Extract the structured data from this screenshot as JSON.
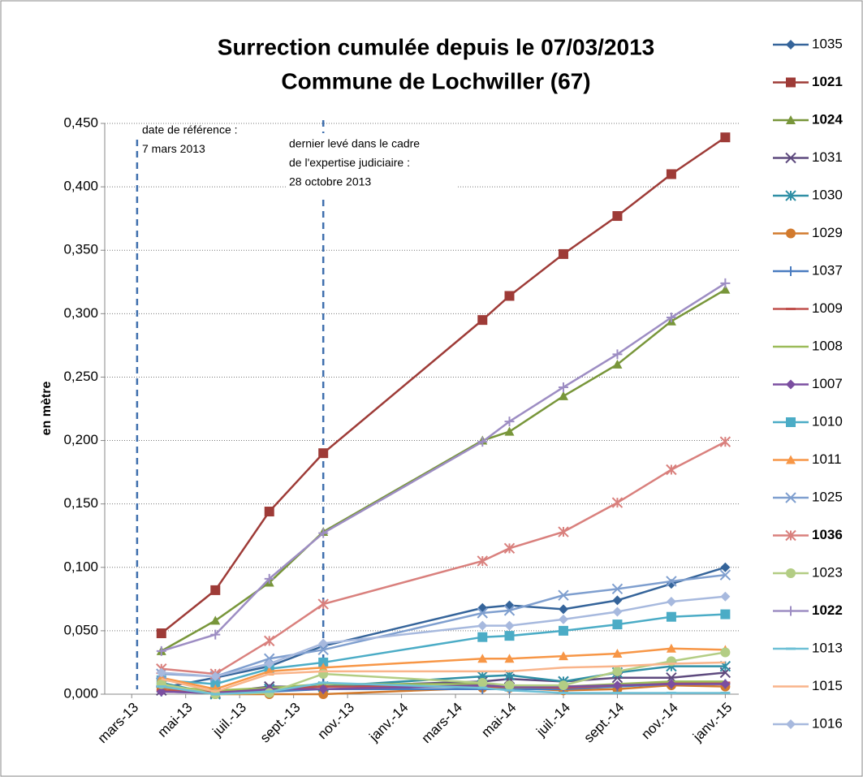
{
  "chart_data": {
    "type": "line",
    "title": [
      "Surrection cumulée depuis le 07/03/2013",
      "Commune de Lochwiller (67)"
    ],
    "y_label": "en mètre",
    "x": [
      1.1,
      3.1,
      5.1,
      7.1,
      13,
      14,
      16,
      18,
      20,
      22
    ],
    "xlim": [
      -1,
      22.5
    ],
    "xticks": [
      {
        "value": 0,
        "label": "mars-13"
      },
      {
        "value": 2,
        "label": "mai-13"
      },
      {
        "value": 4,
        "label": "juil.-13"
      },
      {
        "value": 6,
        "label": "sept.-13"
      },
      {
        "value": 8,
        "label": "nov.-13"
      },
      {
        "value": 10,
        "label": "janv.-14"
      },
      {
        "value": 12,
        "label": "mars-14"
      },
      {
        "value": 14,
        "label": "mai-14"
      },
      {
        "value": 16,
        "label": "juil.-14"
      },
      {
        "value": 18,
        "label": "sept.-14"
      },
      {
        "value": 20,
        "label": "nov.-14"
      },
      {
        "value": 22,
        "label": "janv.-15"
      }
    ],
    "ylim": [
      0,
      0.45
    ],
    "yticks": [
      {
        "value": 0,
        "label": "0,000"
      },
      {
        "value": 0.05,
        "label": "0,050"
      },
      {
        "value": 0.1,
        "label": "0,100"
      },
      {
        "value": 0.15,
        "label": "0,150"
      },
      {
        "value": 0.2,
        "label": "0,200"
      },
      {
        "value": 0.25,
        "label": "0,250"
      },
      {
        "value": 0.3,
        "label": "0,300"
      },
      {
        "value": 0.35,
        "label": "0,350"
      },
      {
        "value": 0.4,
        "label": "0,400"
      },
      {
        "value": 0.45,
        "label": "0,450"
      }
    ],
    "grid": true,
    "legend": "right",
    "annotations": [
      {
        "x": 0.2,
        "text": [
          "date de référence  :",
          "7 mars 2013"
        ]
      },
      {
        "x": 7.1,
        "text": [
          "dernier levé dans le cadre",
          "de l'expertise judiciaire  :",
          "28 octobre 2013"
        ]
      }
    ],
    "series": [
      {
        "name": "1035",
        "color": "#35649a",
        "marker": "diamond",
        "values": [
          0.005,
          0.013,
          0.022,
          0.038,
          0.068,
          0.07,
          0.067,
          0.074,
          0.087,
          0.1
        ]
      },
      {
        "name": "1021",
        "color": "#9e3b37",
        "marker": "square",
        "label_color": "#e02020",
        "values": [
          0.048,
          0.082,
          0.144,
          0.19,
          0.295,
          0.314,
          0.347,
          0.377,
          0.41,
          0.439
        ]
      },
      {
        "name": "1024",
        "color": "#78963a",
        "marker": "triangle",
        "label_color": "#e02020",
        "values": [
          0.034,
          0.058,
          0.088,
          0.128,
          0.2,
          0.207,
          0.235,
          0.26,
          0.294,
          0.319
        ]
      },
      {
        "name": "1031",
        "color": "#5e4a7e",
        "marker": "x",
        "values": [
          0.003,
          0.001,
          0.006,
          0.006,
          0.01,
          0.012,
          0.01,
          0.013,
          0.013,
          0.017
        ]
      },
      {
        "name": "1030",
        "color": "#2f8fa5",
        "marker": "asterisk",
        "values": [
          0.009,
          0.0,
          0.004,
          0.006,
          0.014,
          0.015,
          0.01,
          0.017,
          0.022,
          0.022
        ]
      },
      {
        "name": "1029",
        "color": "#d27a2d",
        "marker": "circle",
        "values": [
          0.005,
          0.0,
          0.0,
          0.0,
          0.005,
          0.005,
          0.003,
          0.004,
          0.007,
          0.006
        ]
      },
      {
        "name": "1037",
        "color": "#4a7cc0",
        "marker": "plus",
        "values": [
          0.002,
          0.001,
          0.002,
          0.004,
          0.004,
          0.004,
          0.004,
          0.006,
          0.008,
          0.008
        ]
      },
      {
        "name": "1009",
        "color": "#c0504d",
        "marker": "dash",
        "values": [
          0.003,
          0.002,
          0.004,
          0.006,
          0.006,
          0.006,
          0.005,
          0.007,
          0.009,
          0.009
        ]
      },
      {
        "name": "1008",
        "color": "#9bbb59",
        "marker": "none",
        "values": [
          0.006,
          0.003,
          0.005,
          0.008,
          0.008,
          0.007,
          0.006,
          0.008,
          0.01,
          0.01
        ]
      },
      {
        "name": "1007",
        "color": "#7b4ea0",
        "marker": "diamond",
        "values": [
          0.002,
          0.001,
          0.004,
          0.004,
          0.007,
          0.006,
          0.006,
          0.007,
          0.008,
          0.008
        ]
      },
      {
        "name": "1010",
        "color": "#4bacc6",
        "marker": "square",
        "values": [
          0.011,
          0.008,
          0.02,
          0.025,
          0.045,
          0.046,
          0.05,
          0.055,
          0.061,
          0.063
        ]
      },
      {
        "name": "1011",
        "color": "#f79646",
        "marker": "triangle",
        "values": [
          0.013,
          0.004,
          0.018,
          0.021,
          0.028,
          0.028,
          0.03,
          0.032,
          0.036,
          0.035
        ]
      },
      {
        "name": "1025",
        "color": "#7f9fcf",
        "marker": "x",
        "values": [
          0.016,
          0.014,
          0.028,
          0.035,
          0.064,
          0.066,
          0.078,
          0.083,
          0.089,
          0.094
        ]
      },
      {
        "name": "1036",
        "color": "#d9807d",
        "marker": "asterisk",
        "label_color": "#e02020",
        "values": [
          0.02,
          0.016,
          0.042,
          0.071,
          0.105,
          0.115,
          0.128,
          0.151,
          0.177,
          0.199
        ]
      },
      {
        "name": "1023",
        "color": "#b3cd84",
        "marker": "circle",
        "values": [
          0.008,
          0.0,
          0.001,
          0.016,
          0.009,
          0.007,
          0.007,
          0.018,
          0.026,
          0.033
        ]
      },
      {
        "name": "1022",
        "color": "#9d8dc3",
        "marker": "plus",
        "label_color": "#e02020",
        "values": [
          0.034,
          0.047,
          0.091,
          0.127,
          0.199,
          0.215,
          0.242,
          0.268,
          0.297,
          0.324
        ]
      },
      {
        "name": "1013",
        "color": "#6ec0d6",
        "marker": "dash",
        "values": [
          0.006,
          0.0,
          0.002,
          0.009,
          0.005,
          0.003,
          0.001,
          0.001,
          0.001,
          0.001
        ]
      },
      {
        "name": "1015",
        "color": "#f9b48a",
        "marker": "none",
        "values": [
          0.012,
          0.002,
          0.016,
          0.018,
          0.018,
          0.018,
          0.021,
          0.022,
          0.024,
          0.025
        ]
      },
      {
        "name": "1016",
        "color": "#a7b9de",
        "marker": "diamond",
        "values": [
          0.017,
          0.014,
          0.024,
          0.04,
          0.054,
          0.054,
          0.059,
          0.065,
          0.073,
          0.077
        ]
      }
    ]
  }
}
